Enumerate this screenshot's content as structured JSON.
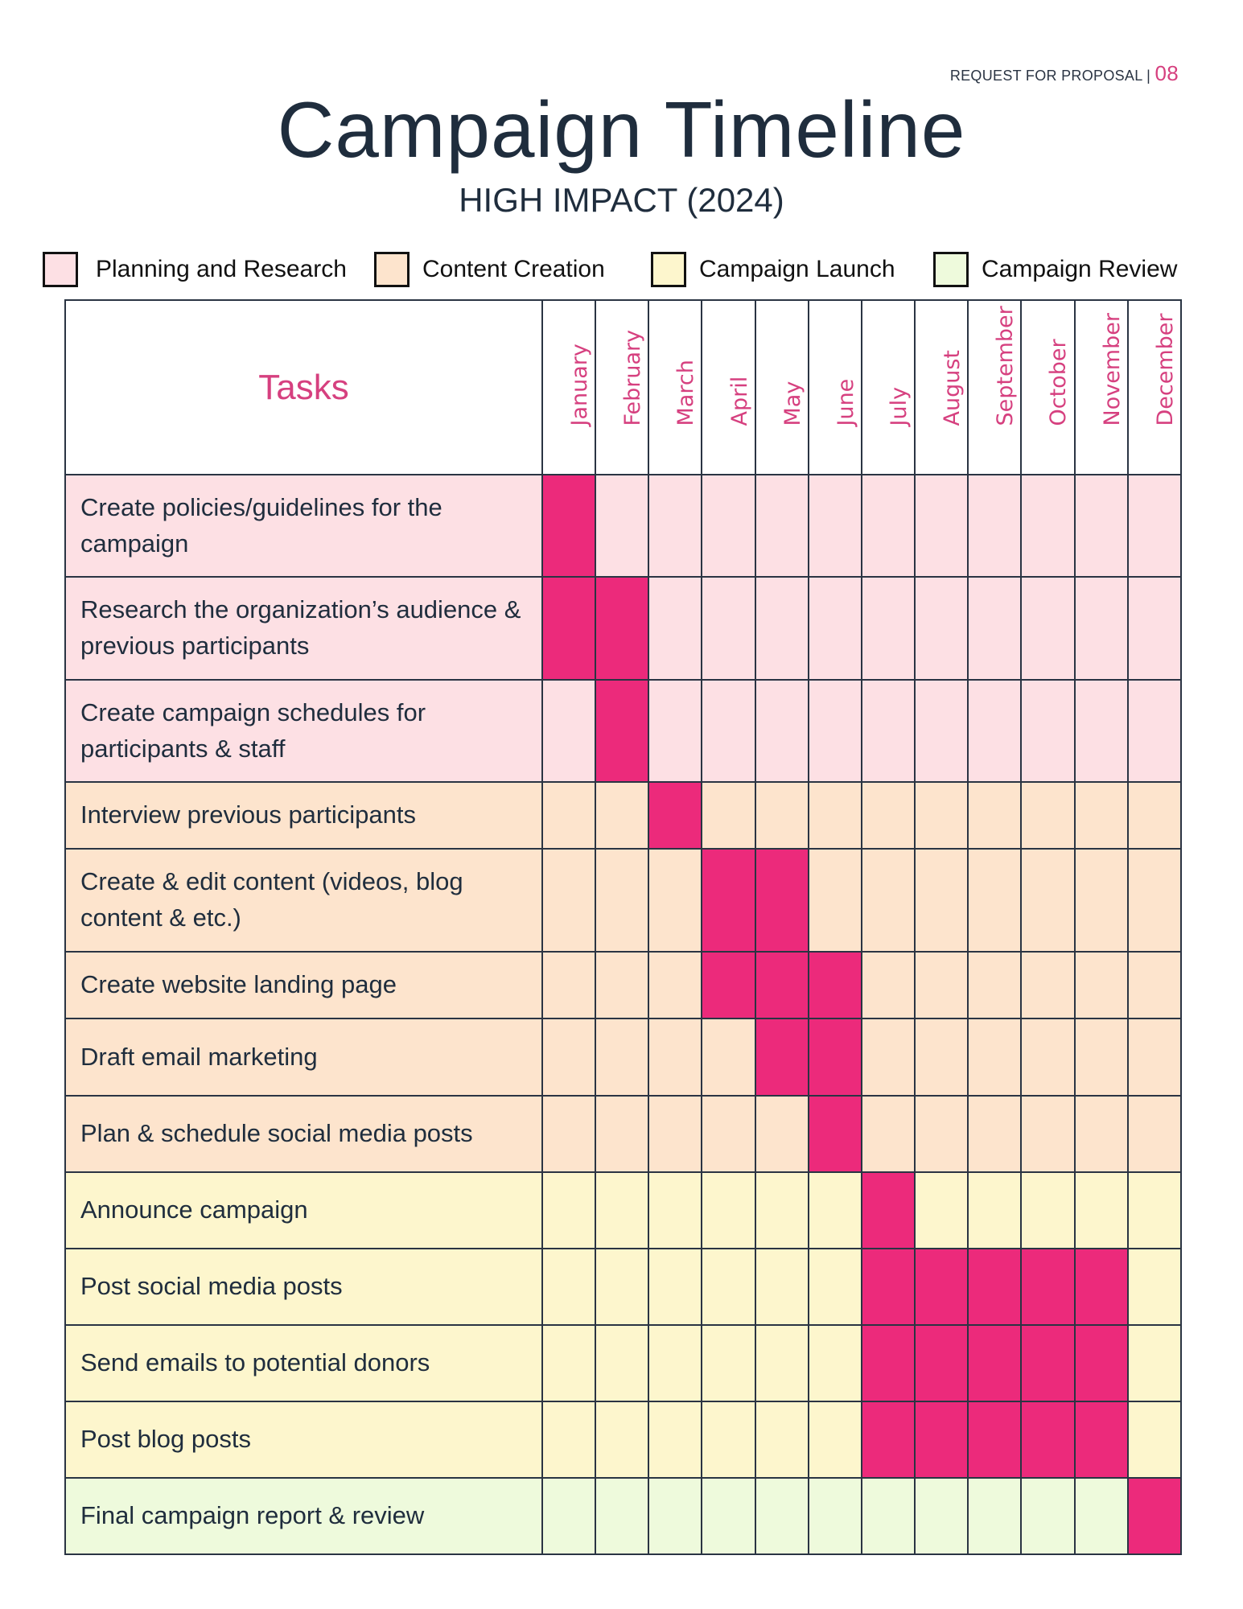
{
  "header": {
    "label": "REQUEST FOR PROPOSAL | ",
    "page": "08"
  },
  "title": "Campaign Timeline",
  "subtitle": "HIGH IMPACT (2024)",
  "colors": {
    "accent": "#ec2a7b",
    "planning": "#fde0e4",
    "content": "#fde4cd",
    "launch": "#fdf6cd",
    "review": "#eefadc"
  },
  "legend": [
    {
      "label": "Planning and Research",
      "phase": "planning"
    },
    {
      "label": "Content Creation",
      "phase": "content"
    },
    {
      "label": "Campaign Launch",
      "phase": "launch"
    },
    {
      "label": "Campaign Review",
      "phase": "review"
    }
  ],
  "table": {
    "tasks_header": "Tasks",
    "months": [
      "January",
      "February",
      "March",
      "April",
      "May",
      "June",
      "July",
      "August",
      "September",
      "October",
      "November",
      "December"
    ],
    "rows": [
      {
        "task": "Create policies/guidelines for the campaign",
        "phase": "planning",
        "active": [
          1,
          0,
          0,
          0,
          0,
          0,
          0,
          0,
          0,
          0,
          0,
          0
        ]
      },
      {
        "task": "Research the organization’s audience & previous participants",
        "phase": "planning",
        "active": [
          1,
          1,
          0,
          0,
          0,
          0,
          0,
          0,
          0,
          0,
          0,
          0
        ]
      },
      {
        "task": "Create campaign schedules for participants & staff",
        "phase": "planning",
        "active": [
          0,
          1,
          0,
          0,
          0,
          0,
          0,
          0,
          0,
          0,
          0,
          0
        ]
      },
      {
        "task": "Interview previous participants",
        "phase": "content",
        "active": [
          0,
          0,
          1,
          0,
          0,
          0,
          0,
          0,
          0,
          0,
          0,
          0
        ]
      },
      {
        "task": "Create & edit content (videos, blog content & etc.)",
        "phase": "content",
        "active": [
          0,
          0,
          0,
          1,
          1,
          0,
          0,
          0,
          0,
          0,
          0,
          0
        ]
      },
      {
        "task": "Create website landing page",
        "phase": "content",
        "active": [
          0,
          0,
          0,
          1,
          1,
          1,
          0,
          0,
          0,
          0,
          0,
          0
        ]
      },
      {
        "task": "Draft email marketing",
        "phase": "content",
        "active": [
          0,
          0,
          0,
          0,
          1,
          1,
          0,
          0,
          0,
          0,
          0,
          0
        ]
      },
      {
        "task": "Plan & schedule social media posts",
        "phase": "content",
        "active": [
          0,
          0,
          0,
          0,
          0,
          1,
          0,
          0,
          0,
          0,
          0,
          0
        ]
      },
      {
        "task": "Announce campaign",
        "phase": "launch",
        "active": [
          0,
          0,
          0,
          0,
          0,
          0,
          1,
          0,
          0,
          0,
          0,
          0
        ]
      },
      {
        "task": "Post social media posts",
        "phase": "launch",
        "active": [
          0,
          0,
          0,
          0,
          0,
          0,
          1,
          1,
          1,
          1,
          1,
          0
        ]
      },
      {
        "task": "Send emails to potential donors",
        "phase": "launch",
        "active": [
          0,
          0,
          0,
          0,
          0,
          0,
          1,
          1,
          1,
          1,
          1,
          0
        ]
      },
      {
        "task": "Post blog posts",
        "phase": "launch",
        "active": [
          0,
          0,
          0,
          0,
          0,
          0,
          1,
          1,
          1,
          1,
          1,
          0
        ]
      },
      {
        "task": "Final campaign report & review",
        "phase": "review",
        "active": [
          0,
          0,
          0,
          0,
          0,
          0,
          0,
          0,
          0,
          0,
          0,
          1
        ]
      }
    ]
  }
}
